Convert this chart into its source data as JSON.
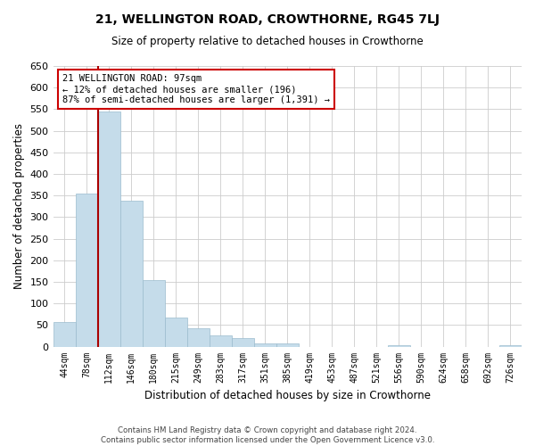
{
  "title": "21, WELLINGTON ROAD, CROWTHORNE, RG45 7LJ",
  "subtitle": "Size of property relative to detached houses in Crowthorne",
  "xlabel": "Distribution of detached houses by size in Crowthorne",
  "ylabel": "Number of detached properties",
  "bar_labels": [
    "44sqm",
    "78sqm",
    "112sqm",
    "146sqm",
    "180sqm",
    "215sqm",
    "249sqm",
    "283sqm",
    "317sqm",
    "351sqm",
    "385sqm",
    "419sqm",
    "453sqm",
    "487sqm",
    "521sqm",
    "556sqm",
    "590sqm",
    "624sqm",
    "658sqm",
    "692sqm",
    "726sqm"
  ],
  "bar_values": [
    57,
    355,
    545,
    337,
    155,
    68,
    42,
    25,
    20,
    8,
    8,
    0,
    0,
    0,
    0,
    3,
    0,
    0,
    0,
    0,
    3
  ],
  "bar_color": "#c5dcea",
  "bar_edge_color": "#9bbcce",
  "vline_color": "#aa0000",
  "annotation_text": "21 WELLINGTON ROAD: 97sqm\n← 12% of detached houses are smaller (196)\n87% of semi-detached houses are larger (1,391) →",
  "annotation_box_color": "#cc0000",
  "ylim": [
    0,
    650
  ],
  "yticks": [
    0,
    50,
    100,
    150,
    200,
    250,
    300,
    350,
    400,
    450,
    500,
    550,
    600,
    650
  ],
  "footer_line1": "Contains HM Land Registry data © Crown copyright and database right 2024.",
  "footer_line2": "Contains public sector information licensed under the Open Government Licence v3.0.",
  "background_color": "#ffffff",
  "grid_color": "#cccccc"
}
